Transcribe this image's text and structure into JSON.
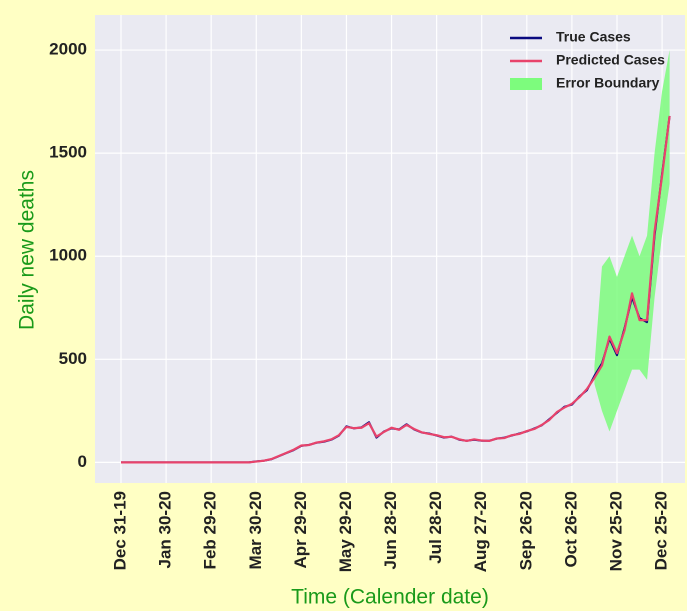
{
  "chart_data": {
    "type": "line",
    "x_label": "Time (Calender date)",
    "y_label": "Daily new deaths",
    "categories": [
      "Dec 31-19",
      null,
      null,
      null,
      null,
      null,
      "Jan 30-20",
      null,
      null,
      null,
      null,
      null,
      "Feb 29-20",
      null,
      null,
      null,
      null,
      null,
      "Mar 30-20",
      null,
      null,
      null,
      null,
      null,
      "Apr 29-20",
      null,
      null,
      null,
      null,
      null,
      "May 29-20",
      null,
      null,
      null,
      null,
      null,
      "Jun 28-20",
      null,
      null,
      null,
      null,
      null,
      "Jul 28-20",
      null,
      null,
      null,
      null,
      null,
      "Aug 27-20",
      null,
      null,
      null,
      null,
      null,
      "Sep 26-20",
      null,
      null,
      null,
      null,
      null,
      "Oct 26-20",
      null,
      null,
      null,
      null,
      null,
      "Nov 25-20",
      null,
      null,
      null,
      null,
      null,
      "Dec 25-20",
      null
    ],
    "series": [
      {
        "name": "True Cases",
        "color": "#0a0a80",
        "values": [
          0,
          0,
          0,
          0,
          0,
          0,
          0,
          0,
          0,
          0,
          0,
          0,
          0,
          0,
          0,
          0,
          0,
          0,
          5,
          8,
          15,
          30,
          45,
          60,
          80,
          85,
          95,
          100,
          110,
          130,
          175,
          165,
          170,
          195,
          120,
          150,
          165,
          160,
          185,
          160,
          145,
          140,
          130,
          120,
          125,
          110,
          105,
          110,
          105,
          105,
          115,
          120,
          130,
          140,
          150,
          165,
          180,
          210,
          240,
          270,
          280,
          320,
          350,
          420,
          480,
          600,
          520,
          650,
          800,
          700,
          680,
          1100,
          1400,
          1680
        ]
      },
      {
        "name": "Predicted Cases",
        "color": "#e8436b",
        "values": [
          0,
          0,
          0,
          0,
          0,
          0,
          0,
          0,
          0,
          0,
          0,
          0,
          0,
          0,
          0,
          0,
          0,
          0,
          4,
          8,
          16,
          31,
          46,
          62,
          82,
          84,
          96,
          102,
          112,
          132,
          172,
          166,
          168,
          190,
          125,
          148,
          168,
          158,
          182,
          162,
          146,
          138,
          132,
          122,
          124,
          112,
          104,
          112,
          106,
          104,
          116,
          118,
          132,
          138,
          152,
          162,
          182,
          206,
          244,
          266,
          284,
          316,
          356,
          410,
          470,
          610,
          530,
          640,
          820,
          690,
          690,
          1120,
          1390,
          1680
        ]
      }
    ],
    "band": {
      "name": "Error Boundary",
      "color": "#7dfc7d",
      "lower": [
        null,
        null,
        null,
        null,
        null,
        null,
        null,
        null,
        null,
        null,
        null,
        null,
        null,
        null,
        null,
        null,
        null,
        null,
        null,
        null,
        null,
        null,
        null,
        null,
        null,
        null,
        null,
        null,
        null,
        null,
        null,
        null,
        null,
        null,
        null,
        null,
        null,
        null,
        null,
        null,
        null,
        null,
        null,
        null,
        null,
        null,
        null,
        null,
        null,
        null,
        null,
        null,
        null,
        null,
        null,
        null,
        null,
        null,
        null,
        null,
        null,
        null,
        null,
        380,
        250,
        150,
        250,
        350,
        450,
        450,
        400,
        800,
        1100,
        1350
      ],
      "upper": [
        null,
        null,
        null,
        null,
        null,
        null,
        null,
        null,
        null,
        null,
        null,
        null,
        null,
        null,
        null,
        null,
        null,
        null,
        null,
        null,
        null,
        null,
        null,
        null,
        null,
        null,
        null,
        null,
        null,
        null,
        null,
        null,
        null,
        null,
        null,
        null,
        null,
        null,
        null,
        null,
        null,
        null,
        null,
        null,
        null,
        null,
        null,
        null,
        null,
        null,
        null,
        null,
        null,
        null,
        null,
        null,
        null,
        null,
        null,
        null,
        null,
        null,
        null,
        470,
        950,
        1000,
        900,
        1000,
        1100,
        1000,
        1100,
        1500,
        1800,
        2000
      ]
    },
    "ylim": [
      -100,
      2170
    ],
    "yticks": [
      0,
      500,
      1000,
      1500,
      2000
    ],
    "grid": true,
    "legend": "upper right"
  }
}
